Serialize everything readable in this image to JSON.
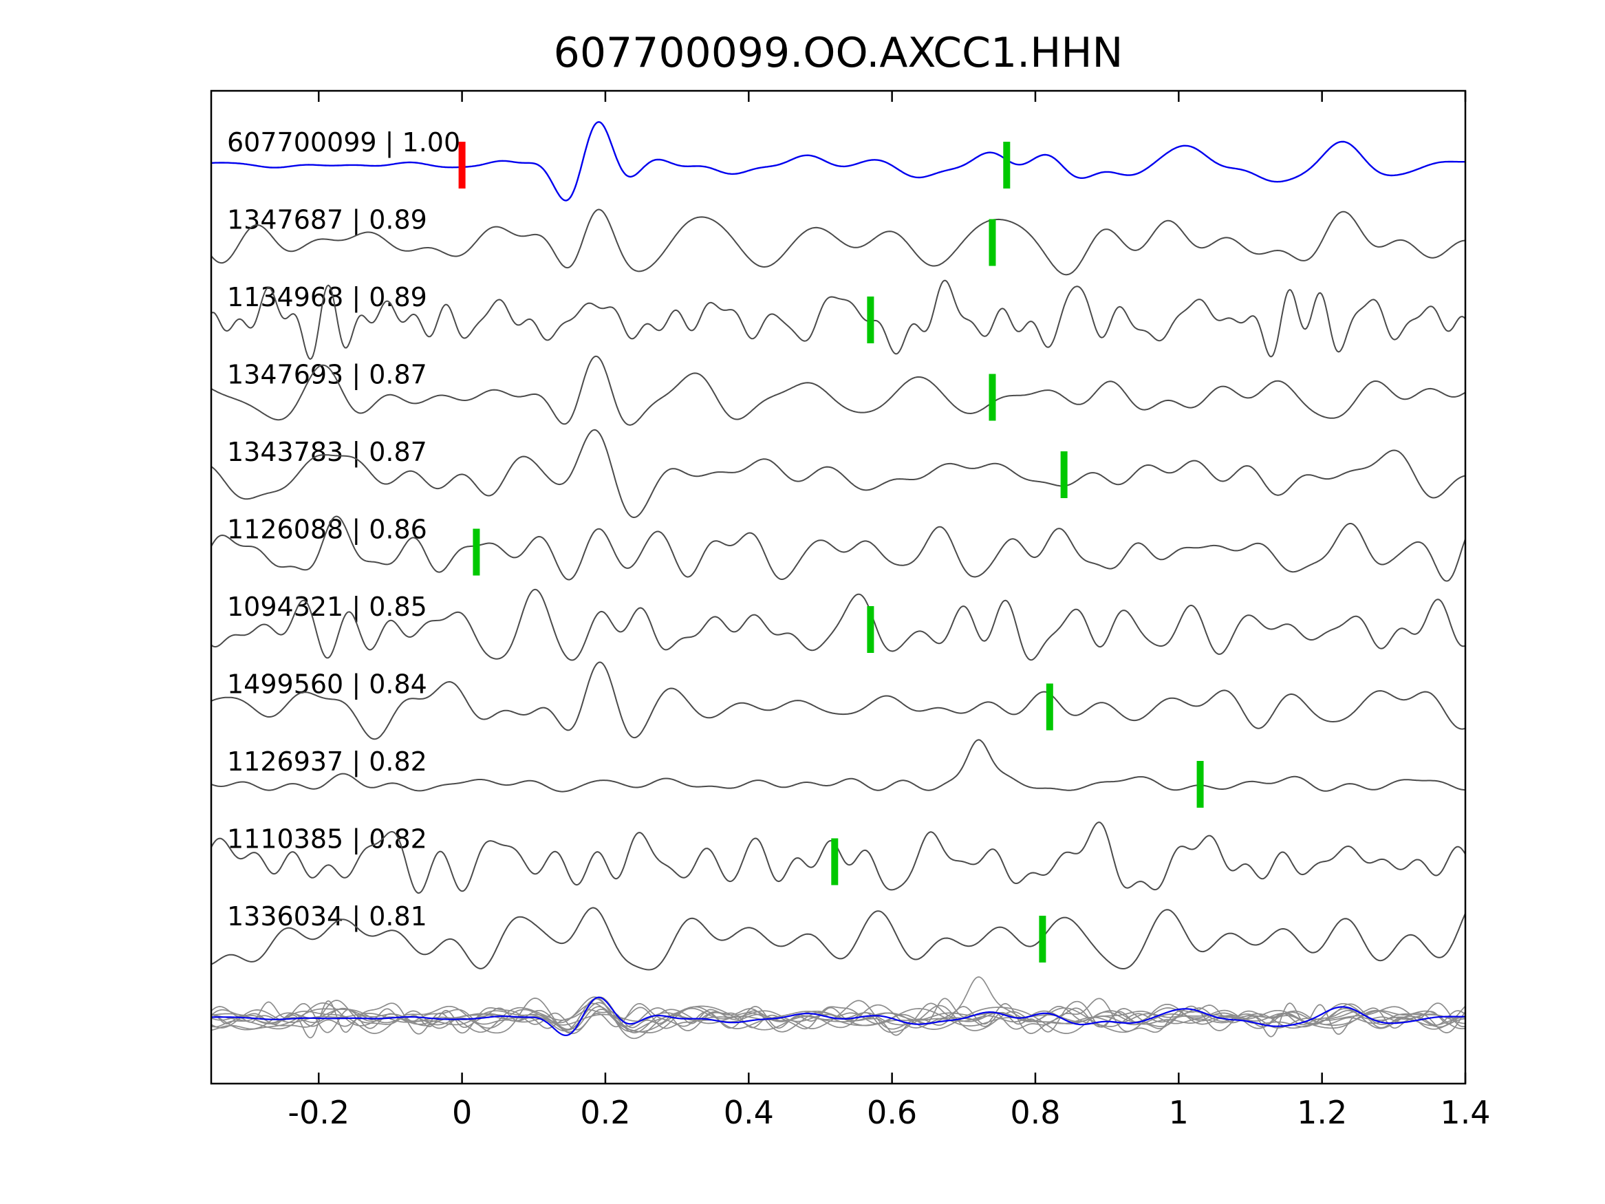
{
  "title": "607700099.OO.AXCC1.HHN",
  "chart_data": {
    "type": "line",
    "title": "607700099.OO.AXCC1.HHN",
    "xlabel": "",
    "ylabel": "",
    "xlim": [
      -0.35,
      1.4
    ],
    "xticks": [
      -0.2,
      0,
      0.2,
      0.4,
      0.6,
      0.8,
      1,
      1.2,
      1.4
    ],
    "xtick_labels": [
      "-0.2",
      "0",
      "0.2",
      "0.4",
      "0.6",
      "0.8",
      "1",
      "1.2",
      "1.4"
    ],
    "grid": false,
    "legend": null,
    "colors": {
      "template_trace": "#0000ee",
      "detection_trace": "#4a4a4a",
      "overlay_trace": "#8c8c8c",
      "template_pick": "#ff0000",
      "detection_pick": "#00c800",
      "axis": "#000000"
    },
    "traces": [
      {
        "id": "607700099",
        "correlation": 1.0,
        "label": "607700099 | 1.00",
        "role": "template",
        "color": "#0000ee",
        "picks": [
          {
            "time": 0.0,
            "color": "#ff0000"
          },
          {
            "time": 0.76,
            "color": "#00c800"
          }
        ]
      },
      {
        "id": "1347687",
        "correlation": 0.89,
        "label": "1347687 | 0.89",
        "role": "detection",
        "color": "#4a4a4a",
        "picks": [
          {
            "time": 0.74,
            "color": "#00c800"
          }
        ]
      },
      {
        "id": "1134968",
        "correlation": 0.89,
        "label": "1134968 | 0.89",
        "role": "detection",
        "color": "#4a4a4a",
        "picks": [
          {
            "time": 0.57,
            "color": "#00c800"
          }
        ]
      },
      {
        "id": "1347693",
        "correlation": 0.87,
        "label": "1347693 | 0.87",
        "role": "detection",
        "color": "#4a4a4a",
        "picks": [
          {
            "time": 0.74,
            "color": "#00c800"
          }
        ]
      },
      {
        "id": "1343783",
        "correlation": 0.87,
        "label": "1343783 | 0.87",
        "role": "detection",
        "color": "#4a4a4a",
        "picks": [
          {
            "time": 0.84,
            "color": "#00c800"
          }
        ]
      },
      {
        "id": "1126088",
        "correlation": 0.86,
        "label": "1126088 | 0.86",
        "role": "detection",
        "color": "#4a4a4a",
        "picks": [
          {
            "time": 0.02,
            "color": "#00c800"
          }
        ]
      },
      {
        "id": "1094321",
        "correlation": 0.85,
        "label": "1094321 | 0.85",
        "role": "detection",
        "color": "#4a4a4a",
        "picks": [
          {
            "time": 0.57,
            "color": "#00c800"
          }
        ]
      },
      {
        "id": "1499560",
        "correlation": 0.84,
        "label": "1499560 | 0.84",
        "role": "detection",
        "color": "#4a4a4a",
        "picks": [
          {
            "time": 0.82,
            "color": "#00c800"
          }
        ]
      },
      {
        "id": "1126937",
        "correlation": 0.82,
        "label": "1126937 | 0.82",
        "role": "detection",
        "color": "#4a4a4a",
        "picks": [
          {
            "time": 1.03,
            "color": "#00c800"
          }
        ]
      },
      {
        "id": "1110385",
        "correlation": 0.82,
        "label": "1110385 | 0.82",
        "role": "detection",
        "color": "#4a4a4a",
        "picks": [
          {
            "time": 0.52,
            "color": "#00c800"
          }
        ]
      },
      {
        "id": "1336034",
        "correlation": 0.81,
        "label": "1336034 | 0.81",
        "role": "detection",
        "color": "#4a4a4a",
        "picks": [
          {
            "time": 0.81,
            "color": "#00c800"
          }
        ]
      }
    ],
    "overlay_row": {
      "description": "All detection traces overlaid together with the template trace",
      "trace_color": "#8c8c8c",
      "template_color": "#0000ee"
    }
  }
}
